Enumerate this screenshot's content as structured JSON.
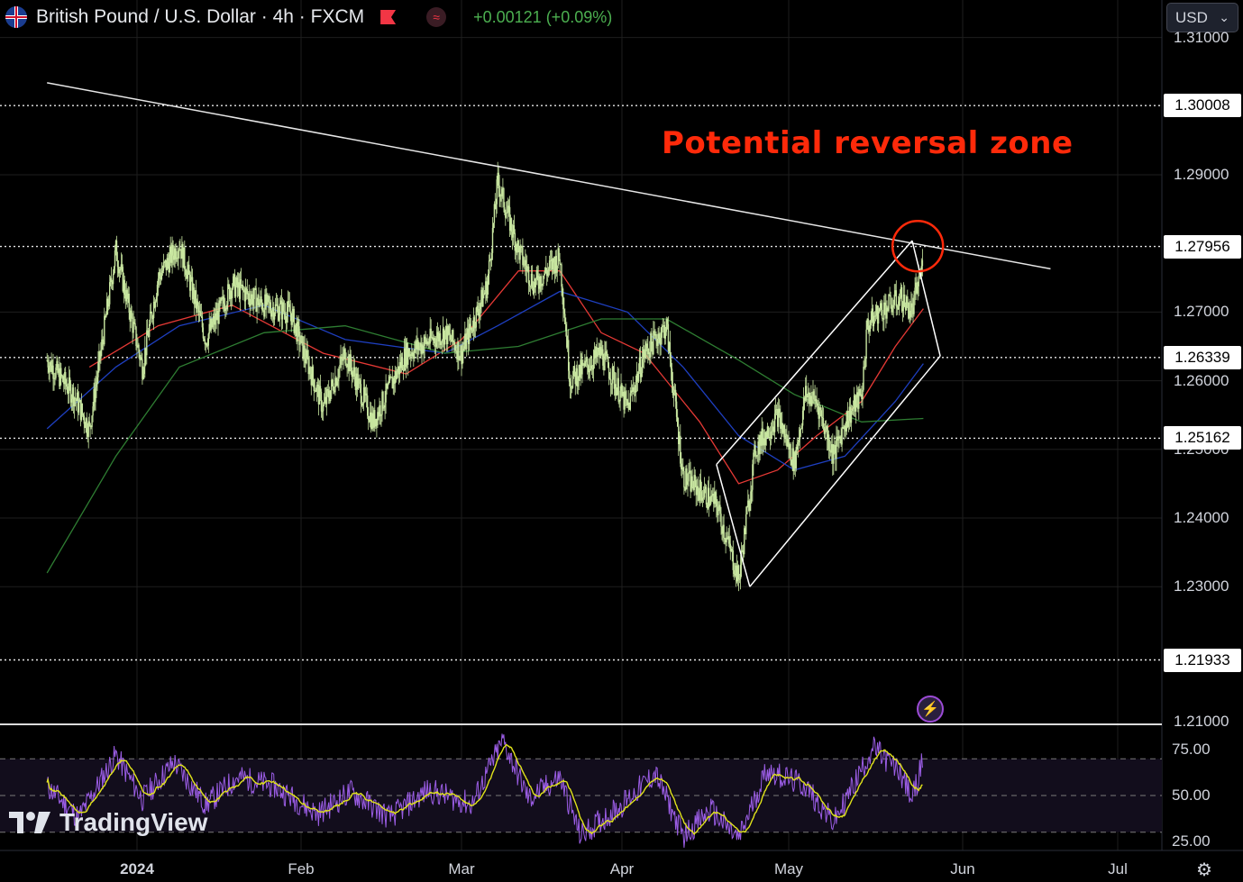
{
  "header": {
    "symbol": "British Pound / U.S. Dollar · 4h · FXCM",
    "change": "+0.00121 (+0.09%)",
    "currency": "USD",
    "icons": [
      "gb-flag-icon",
      "market-status-icon",
      "indicator-icon",
      "chevron-down-icon"
    ]
  },
  "annotation": {
    "text": "Potential reversal zone",
    "color": "#ff2a0a"
  },
  "price_axis": {
    "ticks": [
      "1.31000",
      "1.29000",
      "1.27000",
      "1.26000",
      "1.25000",
      "1.24000",
      "1.23000",
      "1.21000"
    ],
    "levels": [
      "1.30008",
      "1.27956",
      "1.26339",
      "1.25162",
      "1.21933"
    ]
  },
  "time_axis": {
    "labels": [
      "2024",
      "Feb",
      "Mar",
      "Apr",
      "May",
      "Jun",
      "Jul"
    ]
  },
  "rsi_axis": {
    "ticks": [
      "75.00",
      "50.00",
      "25.00"
    ]
  },
  "branding": {
    "logo": "TradingView"
  },
  "colors": {
    "background": "#000000",
    "candle": "#c8e6a0",
    "ma_fast": "#e53935",
    "ma_mid": "#1e3fc0",
    "ma_slow": "#2e7d32",
    "rsi": "#9b5de5",
    "rsi_ma": "#e0e31b",
    "annotation": "#ff2a0a"
  },
  "chart_data": {
    "type": "line",
    "title": "British Pound / U.S. Dollar · 4h · FXCM",
    "y_range": [
      1.205,
      1.315
    ],
    "x_labels": [
      "2024",
      "Feb",
      "Mar",
      "Apr",
      "May",
      "Jun",
      "Jul"
    ],
    "horizontal_levels": [
      1.30008,
      1.27956,
      1.26339,
      1.25162,
      1.21933
    ],
    "price_path": [
      [
        "2023-12-15",
        1.263
      ],
      [
        "2023-12-20",
        1.258
      ],
      [
        "2023-12-23",
        1.253
      ],
      [
        "2023-12-28",
        1.279
      ],
      [
        "2024-01-02",
        1.262
      ],
      [
        "2024-01-05",
        1.275
      ],
      [
        "2024-01-09",
        1.28
      ],
      [
        "2024-01-14",
        1.266
      ],
      [
        "2024-01-19",
        1.274
      ],
      [
        "2024-01-25",
        1.271
      ],
      [
        "2024-01-30",
        1.27
      ],
      [
        "2024-02-05",
        1.256
      ],
      [
        "2024-02-09",
        1.264
      ],
      [
        "2024-02-14",
        1.254
      ],
      [
        "2024-02-20",
        1.264
      ],
      [
        "2024-02-27",
        1.267
      ],
      [
        "2024-03-01",
        1.264
      ],
      [
        "2024-03-06",
        1.274
      ],
      [
        "2024-03-08",
        1.289
      ],
      [
        "2024-03-12",
        1.279
      ],
      [
        "2024-03-15",
        1.274
      ],
      [
        "2024-03-20",
        1.278
      ],
      [
        "2024-03-22",
        1.26
      ],
      [
        "2024-03-28",
        1.264
      ],
      [
        "2024-04-02",
        1.256
      ],
      [
        "2024-04-05",
        1.264
      ],
      [
        "2024-04-09",
        1.268
      ],
      [
        "2024-04-12",
        1.246
      ],
      [
        "2024-04-15",
        1.244
      ],
      [
        "2024-04-18",
        1.242
      ],
      [
        "2024-04-22",
        1.231
      ],
      [
        "2024-04-25",
        1.25
      ],
      [
        "2024-04-29",
        1.255
      ],
      [
        "2024-05-02",
        1.248
      ],
      [
        "2024-05-04",
        1.258
      ],
      [
        "2024-05-06",
        1.257
      ],
      [
        "2024-05-09",
        1.249
      ],
      [
        "2024-05-11",
        1.254
      ],
      [
        "2024-05-14",
        1.258
      ],
      [
        "2024-05-15",
        1.268
      ],
      [
        "2024-05-17",
        1.27
      ],
      [
        "2024-05-21",
        1.272
      ],
      [
        "2024-05-23",
        1.27
      ],
      [
        "2024-05-24",
        1.274
      ],
      [
        "2024-05-25",
        1.2773
      ]
    ],
    "series": [
      {
        "name": "MA fast",
        "points": [
          [
            "2023-12-23",
            1.262
          ],
          [
            "2024-01-05",
            1.268
          ],
          [
            "2024-01-19",
            1.271
          ],
          [
            "2024-02-05",
            1.264
          ],
          [
            "2024-02-20",
            1.261
          ],
          [
            "2024-03-01",
            1.266
          ],
          [
            "2024-03-12",
            1.276
          ],
          [
            "2024-03-20",
            1.276
          ],
          [
            "2024-03-28",
            1.267
          ],
          [
            "2024-04-05",
            1.264
          ],
          [
            "2024-04-15",
            1.254
          ],
          [
            "2024-04-22",
            1.245
          ],
          [
            "2024-04-29",
            1.247
          ],
          [
            "2024-05-06",
            1.252
          ],
          [
            "2024-05-14",
            1.257
          ],
          [
            "2024-05-20",
            1.265
          ],
          [
            "2024-05-25",
            1.2705
          ]
        ]
      },
      {
        "name": "MA mid",
        "points": [
          [
            "2023-12-15",
            1.253
          ],
          [
            "2023-12-28",
            1.262
          ],
          [
            "2024-01-09",
            1.268
          ],
          [
            "2024-01-25",
            1.271
          ],
          [
            "2024-02-09",
            1.266
          ],
          [
            "2024-02-27",
            1.264
          ],
          [
            "2024-03-08",
            1.268
          ],
          [
            "2024-03-20",
            1.273
          ],
          [
            "2024-04-02",
            1.27
          ],
          [
            "2024-04-12",
            1.262
          ],
          [
            "2024-04-22",
            1.252
          ],
          [
            "2024-05-02",
            1.247
          ],
          [
            "2024-05-11",
            1.249
          ],
          [
            "2024-05-20",
            1.257
          ],
          [
            "2024-05-25",
            1.2625
          ]
        ]
      },
      {
        "name": "MA slow",
        "points": [
          [
            "2023-12-15",
            1.232
          ],
          [
            "2023-12-28",
            1.249
          ],
          [
            "2024-01-09",
            1.262
          ],
          [
            "2024-01-25",
            1.267
          ],
          [
            "2024-02-09",
            1.268
          ],
          [
            "2024-02-27",
            1.264
          ],
          [
            "2024-03-12",
            1.265
          ],
          [
            "2024-03-28",
            1.269
          ],
          [
            "2024-04-09",
            1.269
          ],
          [
            "2024-04-22",
            1.263
          ],
          [
            "2024-05-02",
            1.258
          ],
          [
            "2024-05-14",
            1.254
          ],
          [
            "2024-05-25",
            1.2545
          ]
        ]
      }
    ],
    "trendline": [
      [
        "2023-12-15",
        1.3034
      ],
      [
        "2024-06-18",
        1.2763
      ]
    ],
    "channel_lines": [
      [
        [
          "2024-04-18",
          1.2478
        ],
        [
          "2024-05-23",
          1.2804
        ]
      ],
      [
        [
          "2024-04-24",
          1.23
        ],
        [
          "2024-05-28",
          1.2636
        ]
      ]
    ],
    "reversal_zone_center": [
      "2024-05-24",
      1.2796
    ],
    "rsi": {
      "ticks": [
        75,
        50,
        25
      ],
      "bands": [
        70,
        50,
        30
      ],
      "values": [
        [
          "2023-12-15",
          55
        ],
        [
          "2023-12-21",
          38
        ],
        [
          "2023-12-28",
          72
        ],
        [
          "2024-01-02",
          48
        ],
        [
          "2024-01-08",
          68
        ],
        [
          "2024-01-14",
          45
        ],
        [
          "2024-01-20",
          60
        ],
        [
          "2024-01-27",
          55
        ],
        [
          "2024-02-04",
          40
        ],
        [
          "2024-02-10",
          52
        ],
        [
          "2024-02-17",
          38
        ],
        [
          "2024-02-24",
          53
        ],
        [
          "2024-03-03",
          45
        ],
        [
          "2024-03-09",
          80
        ],
        [
          "2024-03-14",
          48
        ],
        [
          "2024-03-20",
          60
        ],
        [
          "2024-03-24",
          28
        ],
        [
          "2024-04-01",
          45
        ],
        [
          "2024-04-07",
          62
        ],
        [
          "2024-04-12",
          28
        ],
        [
          "2024-04-17",
          42
        ],
        [
          "2024-04-22",
          26
        ],
        [
          "2024-04-27",
          64
        ],
        [
          "2024-05-04",
          55
        ],
        [
          "2024-05-09",
          35
        ],
        [
          "2024-05-16",
          76
        ],
        [
          "2024-05-21",
          62
        ],
        [
          "2024-05-23",
          48
        ],
        [
          "2024-05-25",
          70
        ]
      ]
    }
  }
}
